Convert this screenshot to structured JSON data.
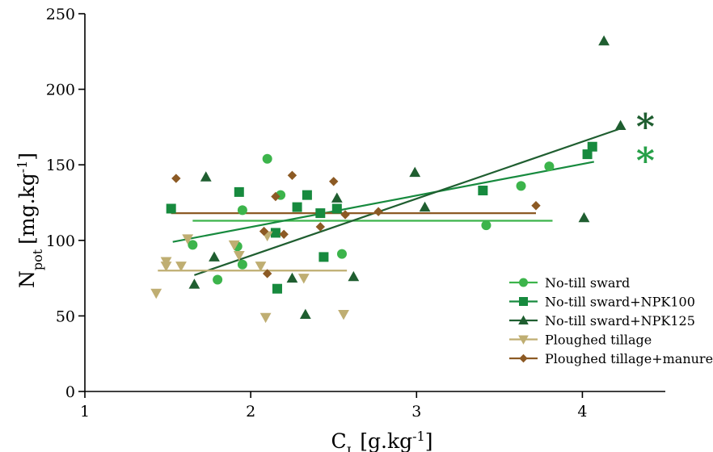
{
  "chart_data": {
    "type": "scatter",
    "xlabel": {
      "main": "C",
      "sub": "L",
      "unit": "[g.kg",
      "sup": "-1",
      "close": "]"
    },
    "ylabel": {
      "main": "N",
      "sub": "pot",
      "unit": "[mg.kg",
      "sup": "-1",
      "close": "]"
    },
    "xlim": [
      1,
      4.5
    ],
    "ylim": [
      0,
      250
    ],
    "xticks": [
      1,
      2,
      3,
      4
    ],
    "yticks": [
      0,
      50,
      100,
      150,
      200,
      250
    ],
    "legend_position": "bottom-right",
    "annotations": [
      {
        "text": "*",
        "color": "#1f5e30",
        "near_series": "No-till sward+NPK125"
      },
      {
        "text": "*",
        "color": "#27a048",
        "near_series": "No-till sward"
      }
    ],
    "series": [
      {
        "name": "No-till sward",
        "marker": "circle",
        "color": "#3cb44b",
        "points": [
          [
            1.65,
            97
          ],
          [
            1.8,
            74
          ],
          [
            1.92,
            96
          ],
          [
            1.95,
            84
          ],
          [
            1.95,
            120
          ],
          [
            2.1,
            154
          ],
          [
            2.18,
            130
          ],
          [
            2.55,
            91
          ],
          [
            3.42,
            110
          ],
          [
            3.63,
            136
          ],
          [
            3.8,
            149
          ]
        ],
        "trend": [
          [
            1.65,
            113
          ],
          [
            3.82,
            113
          ]
        ]
      },
      {
        "name": "No-till sward+NPK100",
        "marker": "square",
        "color": "#178a3e",
        "points": [
          [
            1.52,
            121
          ],
          [
            1.93,
            132
          ],
          [
            2.15,
            105
          ],
          [
            2.16,
            68
          ],
          [
            2.28,
            122
          ],
          [
            2.34,
            130
          ],
          [
            2.42,
            118
          ],
          [
            2.44,
            89
          ],
          [
            2.52,
            121
          ],
          [
            3.4,
            133
          ],
          [
            4.03,
            157
          ],
          [
            4.06,
            162
          ]
        ],
        "trend": [
          [
            1.53,
            99
          ],
          [
            4.07,
            152
          ]
        ]
      },
      {
        "name": "No-till sward+NPK125",
        "marker": "triangle-up",
        "color": "#1f5e30",
        "points": [
          [
            1.66,
            71
          ],
          [
            1.73,
            142
          ],
          [
            1.78,
            89
          ],
          [
            2.25,
            75
          ],
          [
            2.33,
            51
          ],
          [
            2.52,
            128
          ],
          [
            2.62,
            76
          ],
          [
            2.99,
            145
          ],
          [
            3.05,
            122
          ],
          [
            4.01,
            115
          ],
          [
            4.13,
            232
          ],
          [
            4.23,
            176
          ]
        ],
        "trend": [
          [
            1.66,
            77
          ],
          [
            4.23,
            174
          ]
        ]
      },
      {
        "name": "Ploughed tillage",
        "marker": "triangle-down",
        "color": "#bfae72",
        "points": [
          [
            1.43,
            65
          ],
          [
            1.49,
            86
          ],
          [
            1.49,
            83
          ],
          [
            1.58,
            83
          ],
          [
            1.62,
            101
          ],
          [
            1.9,
            97
          ],
          [
            1.93,
            90
          ],
          [
            2.06,
            83
          ],
          [
            2.09,
            49
          ],
          [
            2.1,
            103
          ],
          [
            2.32,
            75
          ],
          [
            2.56,
            51
          ]
        ],
        "trend": [
          [
            1.44,
            80
          ],
          [
            2.58,
            80
          ]
        ]
      },
      {
        "name": "Ploughed tillage+manure",
        "marker": "diamond",
        "color": "#8c5a24",
        "points": [
          [
            1.55,
            141
          ],
          [
            2.08,
            106
          ],
          [
            2.1,
            78
          ],
          [
            2.15,
            129
          ],
          [
            2.2,
            104
          ],
          [
            2.25,
            143
          ],
          [
            2.42,
            109
          ],
          [
            2.5,
            139
          ],
          [
            2.57,
            117
          ],
          [
            2.77,
            119
          ],
          [
            3.72,
            123
          ]
        ],
        "trend": [
          [
            1.52,
            118
          ],
          [
            3.72,
            118
          ]
        ]
      }
    ]
  }
}
